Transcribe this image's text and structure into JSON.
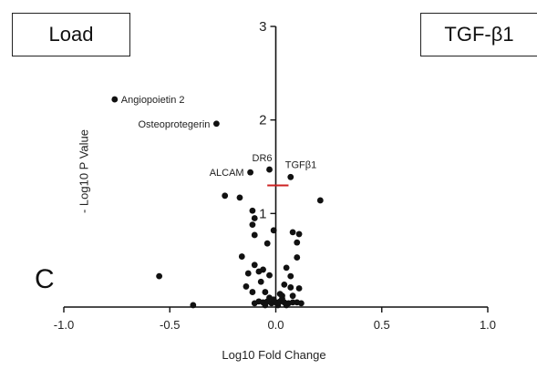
{
  "labels": {
    "left_box": "Load",
    "right_box": "TGF-β1",
    "panel": "C"
  },
  "chart_data": {
    "type": "scatter",
    "xlabel": "Log10 Fold Change",
    "ylabel": "- Log10 P Value",
    "xlim": [
      -1.0,
      1.0
    ],
    "ylim": [
      0,
      3
    ],
    "x_ticks": [
      "-1.0",
      "-0.5",
      "0.0",
      "0.5",
      "1.0"
    ],
    "y_ticks": [
      "1",
      "2",
      "3"
    ],
    "threshold_line": {
      "y": 1.3,
      "x_range": [
        -0.04,
        0.06
      ],
      "color": "#cc2222"
    },
    "grid": false,
    "points": [
      {
        "x": -0.76,
        "y": 2.22,
        "label": "Angiopoietin 2",
        "label_side": "right"
      },
      {
        "x": -0.28,
        "y": 1.96,
        "label": "Osteoprotegerin",
        "label_side": "left"
      },
      {
        "x": -0.03,
        "y": 1.47,
        "label": "DR6",
        "label_side": "above"
      },
      {
        "x": -0.12,
        "y": 1.44,
        "label": "ALCAM",
        "label_side": "left"
      },
      {
        "x": 0.07,
        "y": 1.39,
        "label": "TGFβ1",
        "label_side": "above-right"
      },
      {
        "x": -0.24,
        "y": 1.19
      },
      {
        "x": -0.17,
        "y": 1.17
      },
      {
        "x": 0.21,
        "y": 1.14
      },
      {
        "x": -0.11,
        "y": 1.03
      },
      {
        "x": -0.1,
        "y": 0.95
      },
      {
        "x": -0.11,
        "y": 0.88
      },
      {
        "x": -0.01,
        "y": 0.82
      },
      {
        "x": 0.08,
        "y": 0.8
      },
      {
        "x": -0.1,
        "y": 0.77
      },
      {
        "x": 0.11,
        "y": 0.78
      },
      {
        "x": 0.1,
        "y": 0.69
      },
      {
        "x": -0.04,
        "y": 0.68
      },
      {
        "x": -0.16,
        "y": 0.54
      },
      {
        "x": 0.1,
        "y": 0.53
      },
      {
        "x": -0.1,
        "y": 0.45
      },
      {
        "x": -0.55,
        "y": 0.33
      },
      {
        "x": -0.08,
        "y": 0.38
      },
      {
        "x": -0.06,
        "y": 0.4
      },
      {
        "x": 0.05,
        "y": 0.42
      },
      {
        "x": -0.13,
        "y": 0.36
      },
      {
        "x": -0.03,
        "y": 0.34
      },
      {
        "x": 0.07,
        "y": 0.33
      },
      {
        "x": -0.07,
        "y": 0.27
      },
      {
        "x": 0.04,
        "y": 0.24
      },
      {
        "x": -0.14,
        "y": 0.22
      },
      {
        "x": 0.07,
        "y": 0.21
      },
      {
        "x": 0.11,
        "y": 0.2
      },
      {
        "x": -0.05,
        "y": 0.16
      },
      {
        "x": -0.11,
        "y": 0.16
      },
      {
        "x": 0.02,
        "y": 0.14
      },
      {
        "x": 0.08,
        "y": 0.12
      },
      {
        "x": -0.03,
        "y": 0.1
      },
      {
        "x": 0.03,
        "y": 0.09
      },
      {
        "x": -0.08,
        "y": 0.06
      },
      {
        "x": -0.06,
        "y": 0.05
      },
      {
        "x": -0.04,
        "y": 0.06
      },
      {
        "x": -0.02,
        "y": 0.04
      },
      {
        "x": 0.0,
        "y": 0.05
      },
      {
        "x": 0.02,
        "y": 0.06
      },
      {
        "x": 0.04,
        "y": 0.05
      },
      {
        "x": 0.06,
        "y": 0.04
      },
      {
        "x": 0.08,
        "y": 0.05
      },
      {
        "x": 0.1,
        "y": 0.05
      },
      {
        "x": -0.1,
        "y": 0.04
      },
      {
        "x": 0.12,
        "y": 0.04
      },
      {
        "x": -0.05,
        "y": 0.02
      },
      {
        "x": 0.01,
        "y": 0.02
      },
      {
        "x": 0.05,
        "y": 0.02
      },
      {
        "x": -0.39,
        "y": 0.02
      },
      {
        "x": -0.01,
        "y": 0.08
      },
      {
        "x": 0.03,
        "y": 0.12
      }
    ]
  }
}
